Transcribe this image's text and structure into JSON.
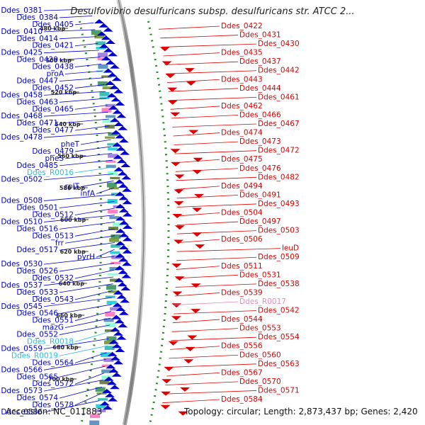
{
  "title": "Desulfovibrio desulfuricans subsp. desulfuricans str. ATCC 2...",
  "accession_label": "Accession: NC_011883",
  "summary": "Topology: circular; Length: 2,873,437 bp; Genes: 2,420",
  "colors": {
    "forward": "#0000cc",
    "reverse": "#dd0000",
    "rna_forward": "#33bbdd",
    "rna_reverse": "#ee88bb",
    "backbone": "#888888",
    "dotted_ring": "#228b22"
  },
  "scale_ticks": [
    "480 kbp",
    "500 kbp",
    "520 kbp",
    "540 kbp",
    "560 kbp",
    "580 kbp",
    "600 kbp",
    "620 kbp",
    "640 kbp",
    "660 kbp",
    "680 kbp",
    "700 kbp"
  ],
  "left_labels": [
    {
      "text": "Ddes_0381",
      "kind": "gene"
    },
    {
      "text": "Ddes_0384",
      "kind": "gene"
    },
    {
      "text": "Ddes_0405",
      "kind": "gene"
    },
    {
      "text": "Ddes_0410",
      "kind": "gene"
    },
    {
      "text": "Ddes_0414",
      "kind": "gene"
    },
    {
      "text": "Ddes_0421",
      "kind": "gene"
    },
    {
      "text": "Ddes_0425",
      "kind": "gene"
    },
    {
      "text": "Ddes_0429",
      "kind": "gene"
    },
    {
      "text": "Ddes_0438",
      "kind": "gene"
    },
    {
      "text": "proA",
      "kind": "gene"
    },
    {
      "text": "Ddes_0447",
      "kind": "gene"
    },
    {
      "text": "Ddes_0452",
      "kind": "gene"
    },
    {
      "text": "Ddes_0458",
      "kind": "gene"
    },
    {
      "text": "Ddes_0463",
      "kind": "gene"
    },
    {
      "text": "Ddes_0465",
      "kind": "gene"
    },
    {
      "text": "Ddes_0468",
      "kind": "gene"
    },
    {
      "text": "Ddes_0471",
      "kind": "gene"
    },
    {
      "text": "Ddes_0477",
      "kind": "gene"
    },
    {
      "text": "Ddes_0478",
      "kind": "gene"
    },
    {
      "text": "pheT",
      "kind": "gene"
    },
    {
      "text": "Ddes_0479",
      "kind": "gene"
    },
    {
      "text": "pheS",
      "kind": "gene"
    },
    {
      "text": "Ddes_0485",
      "kind": "gene"
    },
    {
      "text": "Ddes_R0016",
      "kind": "rna"
    },
    {
      "text": "Ddes_0502",
      "kind": "gene"
    },
    {
      "text": "rplT",
      "kind": "gene"
    },
    {
      "text": "infA",
      "kind": "gene"
    },
    {
      "text": "Ddes_0508",
      "kind": "gene"
    },
    {
      "text": "Ddes_0501",
      "kind": "gene"
    },
    {
      "text": "Ddes_0512",
      "kind": "gene"
    },
    {
      "text": "Ddes_0510",
      "kind": "gene"
    },
    {
      "text": "Ddes_0516",
      "kind": "gene"
    },
    {
      "text": "Ddes_0513",
      "kind": "gene"
    },
    {
      "text": "frr",
      "kind": "gene"
    },
    {
      "text": "Ddes_0517",
      "kind": "gene"
    },
    {
      "text": "pyrH",
      "kind": "gene"
    },
    {
      "text": "Ddes_0530",
      "kind": "gene"
    },
    {
      "text": "Ddes_0526",
      "kind": "gene"
    },
    {
      "text": "Ddes_0532",
      "kind": "gene"
    },
    {
      "text": "Ddes_0537",
      "kind": "gene"
    },
    {
      "text": "Ddes_0533",
      "kind": "gene"
    },
    {
      "text": "Ddes_0543",
      "kind": "gene"
    },
    {
      "text": "Ddes_0545",
      "kind": "gene"
    },
    {
      "text": "Ddes_0546",
      "kind": "gene"
    },
    {
      "text": "Ddes_0551",
      "kind": "gene"
    },
    {
      "text": "mazG",
      "kind": "gene"
    },
    {
      "text": "Ddes_0552",
      "kind": "gene"
    },
    {
      "text": "Ddes_R0018",
      "kind": "rna"
    },
    {
      "text": "Ddes_0559",
      "kind": "gene"
    },
    {
      "text": "Ddes_R0019",
      "kind": "rna"
    },
    {
      "text": "Ddes_0564",
      "kind": "gene"
    },
    {
      "text": "Ddes_0566",
      "kind": "gene"
    },
    {
      "text": "Ddes_0565",
      "kind": "gene"
    },
    {
      "text": "Ddes_0572",
      "kind": "gene"
    },
    {
      "text": "Ddes_0573",
      "kind": "gene"
    },
    {
      "text": "Ddes_0574",
      "kind": "gene"
    },
    {
      "text": "Ddes_0578",
      "kind": "gene"
    },
    {
      "text": "Ddes_0586",
      "kind": "gene"
    }
  ],
  "right_labels": [
    {
      "text": "Ddes_0422",
      "kind": "gene"
    },
    {
      "text": "Ddes_0431",
      "kind": "gene"
    },
    {
      "text": "Ddes_0430",
      "kind": "gene"
    },
    {
      "text": "Ddes_0435",
      "kind": "gene"
    },
    {
      "text": "Ddes_0437",
      "kind": "gene"
    },
    {
      "text": "Ddes_0442",
      "kind": "gene"
    },
    {
      "text": "Ddes_0443",
      "kind": "gene"
    },
    {
      "text": "Ddes_0444",
      "kind": "gene"
    },
    {
      "text": "Ddes_0461",
      "kind": "gene"
    },
    {
      "text": "Ddes_0462",
      "kind": "gene"
    },
    {
      "text": "Ddes_0466",
      "kind": "gene"
    },
    {
      "text": "Ddes_0467",
      "kind": "gene"
    },
    {
      "text": "Ddes_0474",
      "kind": "gene"
    },
    {
      "text": "Ddes_0473",
      "kind": "gene"
    },
    {
      "text": "Ddes_0472",
      "kind": "gene"
    },
    {
      "text": "Ddes_0475",
      "kind": "gene"
    },
    {
      "text": "Ddes_0476",
      "kind": "gene"
    },
    {
      "text": "Ddes_0482",
      "kind": "gene"
    },
    {
      "text": "Ddes_0494",
      "kind": "gene"
    },
    {
      "text": "Ddes_0491",
      "kind": "gene"
    },
    {
      "text": "Ddes_0493",
      "kind": "gene"
    },
    {
      "text": "Ddes_0504",
      "kind": "gene"
    },
    {
      "text": "Ddes_0497",
      "kind": "gene"
    },
    {
      "text": "Ddes_0503",
      "kind": "gene"
    },
    {
      "text": "Ddes_0506",
      "kind": "gene"
    },
    {
      "text": "leuD",
      "kind": "gene"
    },
    {
      "text": "Ddes_0509",
      "kind": "gene"
    },
    {
      "text": "Ddes_0511",
      "kind": "gene"
    },
    {
      "text": "Ddes_0531",
      "kind": "gene"
    },
    {
      "text": "Ddes_0538",
      "kind": "gene"
    },
    {
      "text": "Ddes_0539",
      "kind": "gene"
    },
    {
      "text": "Ddes_R0017",
      "kind": "rna"
    },
    {
      "text": "Ddes_0542",
      "kind": "gene"
    },
    {
      "text": "Ddes_0544",
      "kind": "gene"
    },
    {
      "text": "Ddes_0553",
      "kind": "gene"
    },
    {
      "text": "Ddes_0554",
      "kind": "gene"
    },
    {
      "text": "Ddes_0556",
      "kind": "gene"
    },
    {
      "text": "Ddes_0560",
      "kind": "gene"
    },
    {
      "text": "Ddes_0563",
      "kind": "gene"
    },
    {
      "text": "Ddes_0567",
      "kind": "gene"
    },
    {
      "text": "Ddes_0570",
      "kind": "gene"
    },
    {
      "text": "Ddes_0571",
      "kind": "gene"
    },
    {
      "text": "Ddes_0584",
      "kind": "gene"
    }
  ]
}
